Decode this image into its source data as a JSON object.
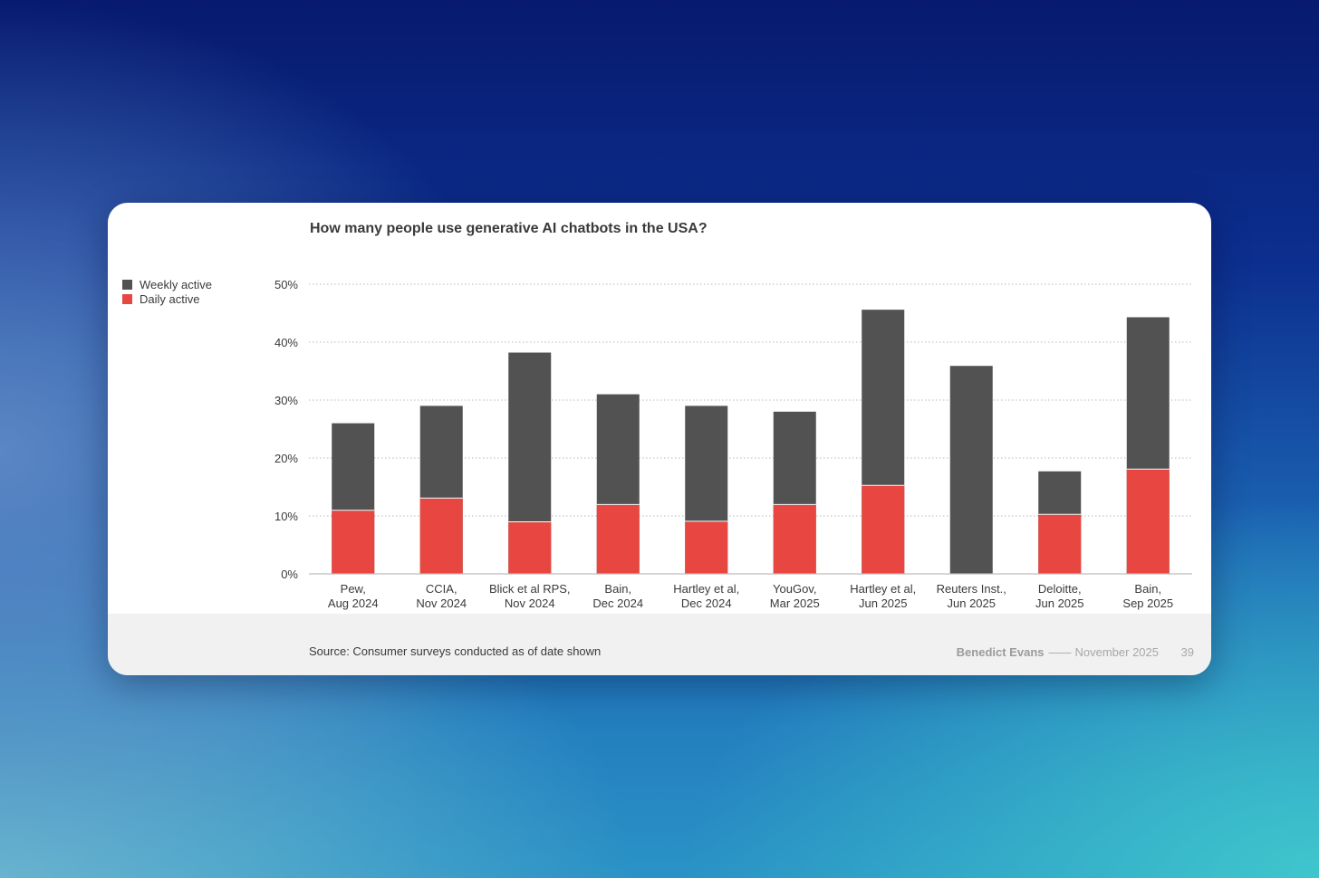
{
  "chart_data": {
    "type": "bar",
    "stacked": false,
    "overlapping": true,
    "title": "How many people use generative AI chatbots in the USA?",
    "categories": [
      [
        "Pew,",
        "Aug 2024"
      ],
      [
        "CCIA,",
        "Nov 2024"
      ],
      [
        "Blick et al RPS,",
        "Nov 2024"
      ],
      [
        "Bain,",
        "Dec 2024"
      ],
      [
        "Hartley et al,",
        "Dec 2024"
      ],
      [
        "YouGov,",
        "Mar 2025"
      ],
      [
        "Hartley et al,",
        "Jun 2025"
      ],
      [
        "Reuters Inst.,",
        "Jun 2025"
      ],
      [
        "Deloitte,",
        "Jun 2025"
      ],
      [
        "Bain,",
        "Sep 2025"
      ]
    ],
    "series": [
      {
        "name": "Weekly active",
        "color": "#525252",
        "values": [
          26,
          29,
          38.2,
          31,
          29,
          28,
          45.6,
          35.9,
          17.7,
          44.3
        ]
      },
      {
        "name": "Daily active",
        "color": "#e84741",
        "values": [
          10.9,
          13,
          8.9,
          11.9,
          9,
          11.9,
          15.2,
          null,
          10.2,
          18
        ]
      }
    ],
    "yticks": [
      "0%",
      "10%",
      "20%",
      "30%",
      "40%",
      "50%"
    ],
    "ylim": [
      0,
      50
    ],
    "xlabel": "",
    "ylabel": "",
    "grid": true,
    "legend": "top-left"
  },
  "legend": {
    "weekly": "Weekly active",
    "daily": "Daily active"
  },
  "footer": {
    "source": "Source: Consumer surveys conducted as of date shown",
    "author": "Benedict Evans",
    "separator": "——",
    "date": "November 2025",
    "page": "39"
  },
  "colors": {
    "weekly": "#525252",
    "daily": "#e84741",
    "background_top": "#071a6e",
    "background_bottom": "#2a93c6"
  }
}
